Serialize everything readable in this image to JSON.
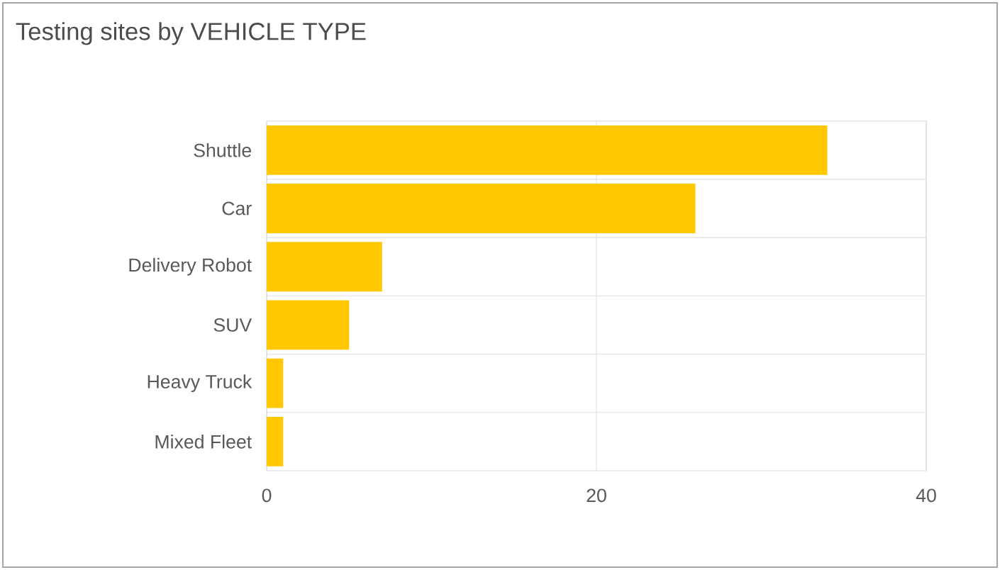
{
  "chart_data": {
    "type": "bar",
    "orientation": "horizontal",
    "title": "Testing sites by VEHICLE TYPE",
    "categories": [
      "Shuttle",
      "Car",
      "Delivery Robot",
      "SUV",
      "Heavy Truck",
      "Mixed Fleet"
    ],
    "values": [
      34,
      26,
      7,
      5,
      1,
      1
    ],
    "color": "#ffc800",
    "xlim": [
      0,
      40
    ],
    "xticks": [
      0,
      20,
      40
    ],
    "grid": true
  }
}
